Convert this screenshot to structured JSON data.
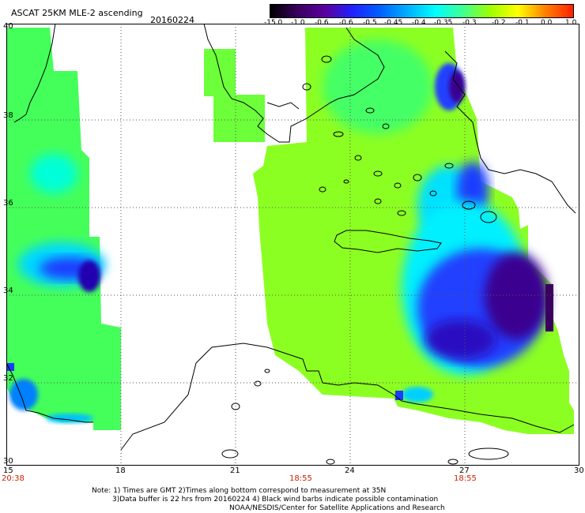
{
  "header": {
    "title": "ASCAT 25KM MLE-2 ascending",
    "date": "20160224"
  },
  "colorbar": {
    "labels": [
      "-15.0",
      "-1.0",
      "-0.6",
      "-0.6",
      "-0.5",
      "-0.45",
      "-0.4",
      "-0.35",
      "-0.3",
      "-0.2",
      "-0.1",
      "0.0",
      "1.0"
    ],
    "colors": [
      "#000000",
      "#3a0060",
      "#5a00a0",
      "#2020ff",
      "#0060ff",
      "#00b0ff",
      "#00ffff",
      "#40ff90",
      "#a0ff00",
      "#ffff00",
      "#ff8000",
      "#ff2000"
    ]
  },
  "axes": {
    "x_ticks": [
      "15",
      "18",
      "21",
      "24",
      "27",
      "30"
    ],
    "y_ticks": [
      "40",
      "38",
      "36",
      "34",
      "32",
      "30"
    ],
    "times": [
      "20:38",
      "18:55",
      "18:55"
    ]
  },
  "notes": {
    "line1": "Note: 1) Times are GMT 2)Times along bottom correspond to measurement at 35N",
    "line2": "3)Data buffer is 22 hrs from 20160224 4) Black wind barbs indicate possible contamination",
    "line3": "NOAA/NESDIS/Center for Satellite Applications and Research"
  }
}
